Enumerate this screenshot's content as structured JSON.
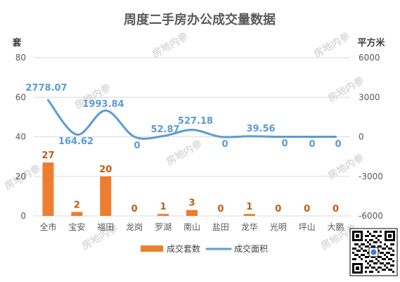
{
  "chart_data": {
    "type": "bar+line",
    "title": "周度二手房办公成交量数据",
    "left_axis": {
      "label": "套",
      "min": 0,
      "max": 80,
      "ticks": [
        0,
        20,
        40,
        60,
        80
      ]
    },
    "right_axis": {
      "label": "平方米",
      "min": -6000,
      "max": 6000,
      "ticks": [
        -6000,
        -3000,
        0,
        3000,
        6000
      ]
    },
    "categories": [
      "全市",
      "宝安",
      "福田",
      "龙岗",
      "罗湖",
      "南山",
      "盐田",
      "龙华",
      "光明",
      "坪山",
      "大鹏"
    ],
    "bar_series": {
      "name": "成交套数",
      "axis": "left",
      "color": "#ED7D31",
      "values": [
        27,
        2,
        20,
        0,
        1,
        3,
        0,
        1,
        0,
        0,
        0
      ],
      "labels": [
        "27",
        "2",
        "20",
        "0",
        "1",
        "3",
        "0",
        "1",
        "0",
        "0",
        "0"
      ]
    },
    "line_series": {
      "name": "成交面积",
      "axis": "right",
      "color": "#5B9BD5",
      "values": [
        2778.07,
        164.62,
        1993.84,
        0,
        52.87,
        527.18,
        0,
        39.56,
        0,
        0,
        0
      ],
      "labels": [
        "2778.07",
        "164.62",
        "1993.84",
        "0",
        "52.87",
        "527.18",
        "0",
        "39.56",
        "0",
        "0",
        "0"
      ]
    },
    "legend": {
      "placement": "bottom-center",
      "items": [
        "成交套数",
        "成交面积"
      ]
    },
    "watermark": "房地内参"
  },
  "colors": {
    "title": "#595959",
    "axis_text": "#595959",
    "grid": "#D9D9D9",
    "watermark": "#D0D0D0",
    "bar_label": "#C55A11",
    "line_label": "#5B9BD5"
  }
}
